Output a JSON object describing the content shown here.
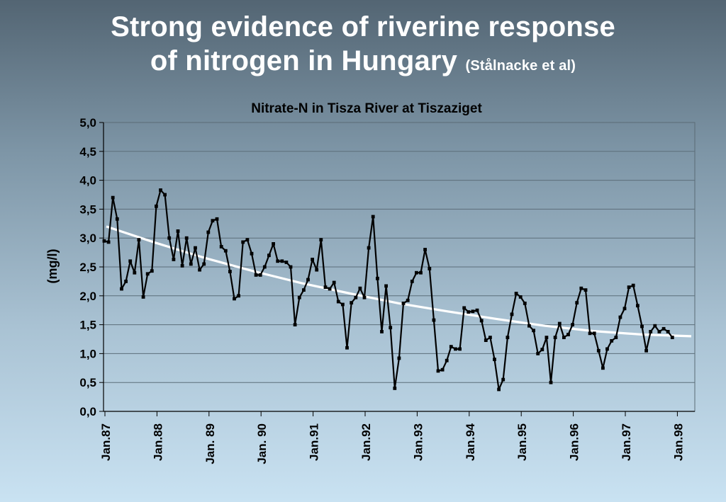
{
  "slide": {
    "title_line1": "Strong evidence of riverine response",
    "title_line2": "of nitrogen in Hungary",
    "citation": "(Stålnacke et al)"
  },
  "chart_data": {
    "type": "line",
    "title": "Nitrate-N in Tisza River at Tiszaziget",
    "ylabel": "(mg/l)",
    "xlabel": "",
    "ylim": [
      0,
      5
    ],
    "yticks": [
      "0,0",
      "0,5",
      "1,0",
      "1,5",
      "2,0",
      "2,5",
      "3,0",
      "3,5",
      "4,0",
      "4,5",
      "5,0"
    ],
    "xticks": [
      "Jan.87",
      "Jan.88",
      "Jan.  89",
      "Jan. 90",
      "Jan.91",
      "Jan.92",
      "Jan.93",
      "Jan.94",
      "Jan.95",
      "Jan.96",
      "Jan.97",
      "Jan.98"
    ],
    "grid": true,
    "series": [
      {
        "type": "line-markers",
        "color": "#000000",
        "values": [
          2.95,
          2.93,
          3.7,
          3.33,
          2.12,
          2.25,
          2.6,
          2.4,
          2.97,
          1.98,
          2.38,
          2.43,
          3.55,
          3.83,
          3.75,
          3.0,
          2.63,
          3.12,
          2.52,
          3.0,
          2.55,
          2.83,
          2.45,
          2.55,
          3.1,
          3.3,
          3.33,
          2.85,
          2.78,
          2.42,
          1.95,
          2.0,
          2.93,
          2.97,
          2.73,
          2.36,
          2.36,
          2.5,
          2.7,
          2.9,
          2.6,
          2.6,
          2.58,
          2.5,
          1.5,
          1.97,
          2.1,
          2.28,
          2.63,
          2.45,
          2.97,
          2.15,
          2.12,
          2.23,
          1.9,
          1.85,
          1.1,
          1.88,
          1.97,
          2.13,
          1.97,
          2.83,
          3.37,
          2.3,
          1.38,
          2.17,
          1.45,
          0.4,
          0.92,
          1.87,
          1.92,
          2.25,
          2.4,
          2.4,
          2.8,
          2.47,
          1.58,
          0.7,
          0.72,
          0.88,
          1.12,
          1.08,
          1.08,
          1.79,
          1.72,
          1.73,
          1.75,
          1.57,
          1.23,
          1.28,
          0.9,
          0.38,
          0.55,
          1.28,
          1.68,
          2.04,
          1.98,
          1.87,
          1.48,
          1.4,
          1.0,
          1.07,
          1.28,
          0.5,
          1.28,
          1.52,
          1.28,
          1.33,
          1.5,
          1.88,
          2.13,
          2.1,
          1.35,
          1.35,
          1.05,
          0.75,
          1.08,
          1.22,
          1.28,
          1.63,
          1.78,
          2.15,
          2.18,
          1.83,
          1.47,
          1.05,
          1.38,
          1.48,
          1.38,
          1.43,
          1.38,
          1.28
        ]
      },
      {
        "type": "trend",
        "color": "#ffffff",
        "values": [
          3.2,
          2.92,
          2.66,
          2.43,
          2.22,
          2.04,
          1.87,
          1.73,
          1.6,
          1.48,
          1.39,
          1.33,
          1.3
        ]
      }
    ]
  }
}
